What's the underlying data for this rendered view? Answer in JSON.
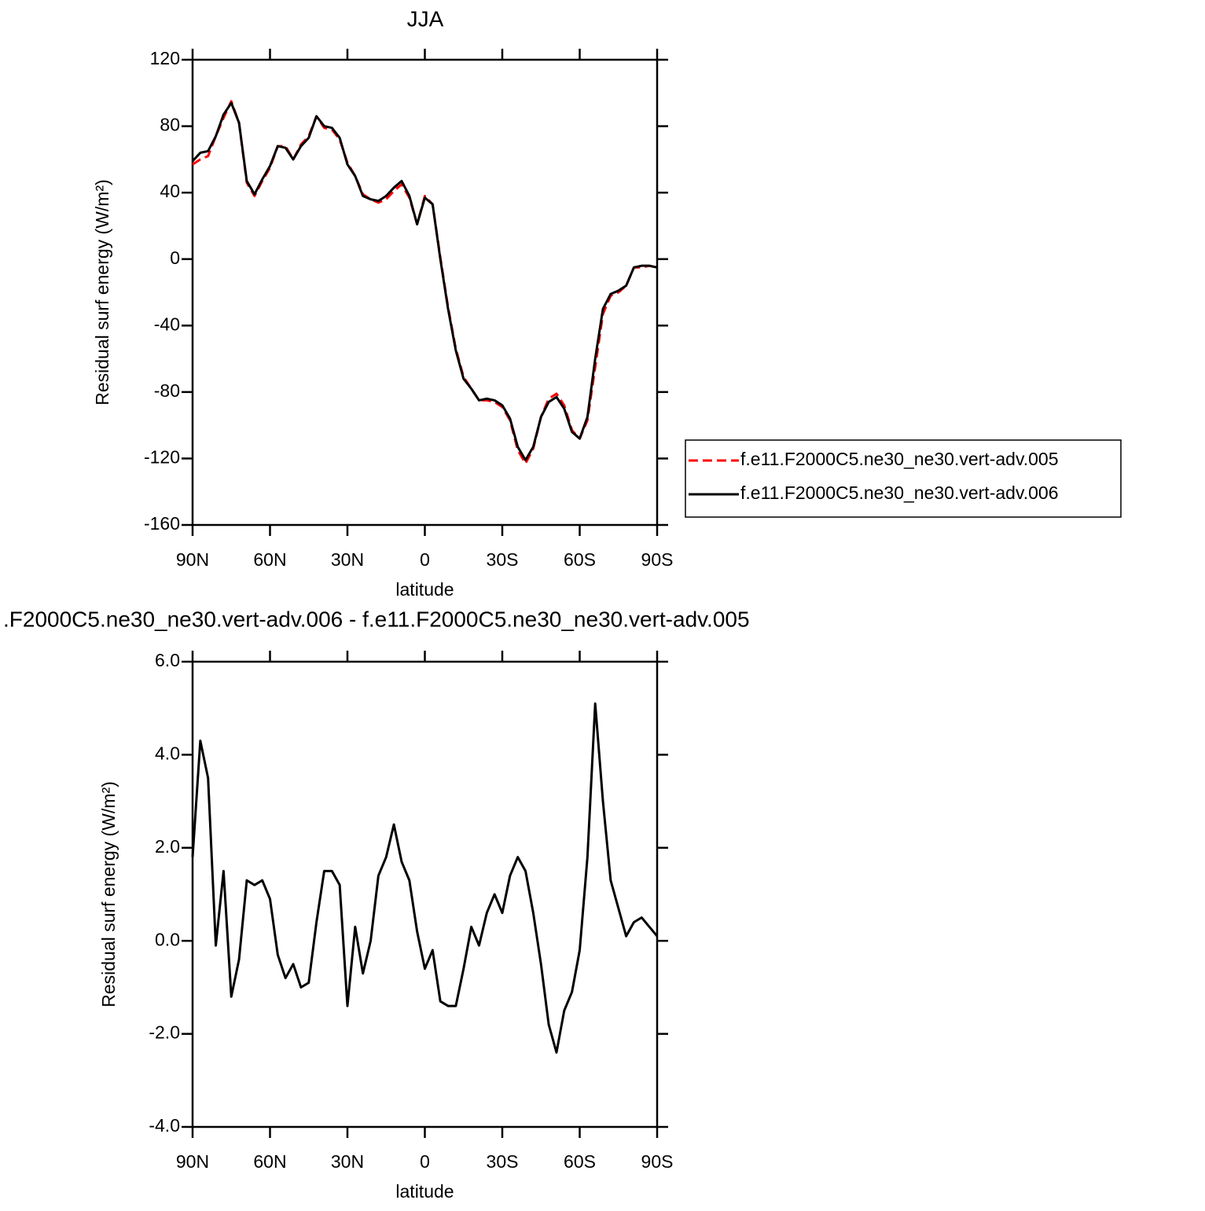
{
  "chart_data": [
    {
      "type": "line",
      "title": "JJA",
      "x_label": "latitude",
      "y_label": "Residual surf energy (W/m²)",
      "xlim": [
        90,
        -90
      ],
      "xticks": [
        {
          "value": 90,
          "label": "90N"
        },
        {
          "value": 60,
          "label": "60N"
        },
        {
          "value": 30,
          "label": "30N"
        },
        0,
        {
          "value": -30,
          "label": "30S"
        },
        {
          "value": -60,
          "label": "60S"
        },
        {
          "value": -90,
          "label": "90S"
        }
      ],
      "ylim": [
        -160,
        120
      ],
      "yticks": [
        120,
        80,
        40,
        0,
        -40,
        -80,
        -120,
        -160
      ],
      "legend": "right",
      "x": [
        90,
        87,
        84,
        81,
        78,
        75,
        72,
        69,
        66,
        63,
        60,
        57,
        54,
        51,
        48,
        45,
        42,
        39,
        36,
        33,
        30,
        27,
        24,
        21,
        18,
        15,
        12,
        9,
        6,
        3,
        0,
        -3,
        -6,
        -9,
        -12,
        -15,
        -18,
        -21,
        -24,
        -27,
        -30,
        -33,
        -36,
        -39,
        -42,
        -45,
        -48,
        -51,
        -54,
        -57,
        -60,
        -63,
        -66,
        -69,
        -72,
        -75,
        -78,
        -81,
        -84,
        -87,
        -90
      ],
      "series": [
        {
          "name": "f.e11.F2000C5.ne30_ne30.vert-adv.005",
          "color": "#ff0000",
          "dash": true,
          "values": [
            57,
            60,
            62,
            74,
            85,
            95,
            82,
            46,
            38,
            47,
            55,
            68,
            68,
            60,
            69,
            74,
            86,
            79,
            78,
            72,
            58,
            50,
            39,
            36,
            34,
            36,
            41,
            45,
            37,
            21,
            38,
            33,
            1,
            -29,
            -54,
            -71,
            -78,
            -85,
            -85,
            -86,
            -89,
            -97,
            -115,
            -123,
            -114,
            -95,
            -84,
            -81,
            -88,
            -103,
            -108,
            -97,
            -65,
            -33,
            -22,
            -20,
            -16,
            -5,
            -5,
            -4,
            -5
          ]
        },
        {
          "name": "f.e11.F2000C5.ne30_ne30.vert-adv.006",
          "color": "#000000",
          "dash": false,
          "values": [
            59,
            64,
            65,
            74,
            87,
            94,
            82,
            47,
            39,
            48,
            56,
            68,
            67,
            60,
            68,
            73,
            86,
            80,
            79,
            73,
            57,
            50,
            38,
            36,
            35,
            38,
            43,
            47,
            38,
            21,
            37,
            33,
            0,
            -30,
            -55,
            -72,
            -78,
            -85,
            -84,
            -85,
            -88,
            -96,
            -113,
            -121,
            -113,
            -95,
            -86,
            -83,
            -90,
            -104,
            -108,
            -95,
            -60,
            -30,
            -21,
            -19,
            -16,
            -5,
            -4,
            -4,
            -5
          ]
        }
      ]
    },
    {
      "type": "line",
      "title": ".F2000C5.ne30_ne30.vert-adv.006 - f.e11.F2000C5.ne30_ne30.vert-adv.005",
      "x_label": "latitude",
      "y_label": "Residual surf energy (W/m²)",
      "xlim": [
        90,
        -90
      ],
      "xticks": [
        {
          "value": 90,
          "label": "90N"
        },
        {
          "value": 60,
          "label": "60N"
        },
        {
          "value": 30,
          "label": "30N"
        },
        0,
        {
          "value": -30,
          "label": "30S"
        },
        {
          "value": -60,
          "label": "60S"
        },
        {
          "value": -90,
          "label": "90S"
        }
      ],
      "ylim": [
        -4,
        6
      ],
      "yticks": [
        {
          "value": 6,
          "label": "6.0"
        },
        {
          "value": 4,
          "label": "4.0"
        },
        {
          "value": 2,
          "label": "2.0"
        },
        {
          "value": 0,
          "label": "0.0"
        },
        {
          "value": -2,
          "label": "-2.0"
        },
        {
          "value": -4,
          "label": "-4.0"
        }
      ],
      "x": [
        90,
        87,
        84,
        81,
        78,
        75,
        72,
        69,
        66,
        63,
        60,
        57,
        54,
        51,
        48,
        45,
        42,
        39,
        36,
        33,
        30,
        27,
        24,
        21,
        18,
        15,
        12,
        9,
        6,
        3,
        0,
        -3,
        -6,
        -9,
        -12,
        -15,
        -18,
        -21,
        -24,
        -27,
        -30,
        -33,
        -36,
        -39,
        -42,
        -45,
        -48,
        -51,
        -54,
        -57,
        -60,
        -63,
        -66,
        -69,
        -72,
        -75,
        -78,
        -81,
        -84,
        -87,
        -90
      ],
      "series": [
        {
          "color": "#000000",
          "dash": false,
          "values": [
            1.8,
            4.3,
            3.5,
            -0.1,
            1.5,
            -1.2,
            -0.4,
            1.3,
            1.2,
            1.3,
            0.9,
            -0.3,
            -0.8,
            -0.5,
            -1.0,
            -0.9,
            0.4,
            1.5,
            1.5,
            1.2,
            -1.4,
            0.3,
            -0.7,
            0.0,
            1.4,
            1.8,
            2.5,
            1.7,
            1.3,
            0.2,
            -0.6,
            -0.2,
            -1.3,
            -1.4,
            -1.4,
            -0.6,
            0.3,
            -0.1,
            0.6,
            1.0,
            0.6,
            1.4,
            1.8,
            1.5,
            0.6,
            -0.5,
            -1.8,
            -2.4,
            -1.5,
            -1.1,
            -0.2,
            1.8,
            5.1,
            3.0,
            1.3,
            0.7,
            0.1,
            0.4,
            0.5,
            0.3,
            0.1
          ]
        }
      ]
    }
  ]
}
